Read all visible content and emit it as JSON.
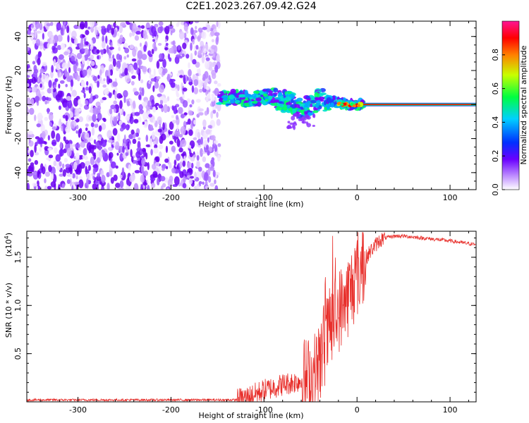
{
  "figure_title": "C2E1.2023.267.09.42.G24",
  "colors": {
    "snr_line": "#e8302c",
    "rainbow": [
      "#ffffff",
      "#7b00ff",
      "#0040ff",
      "#00c8ff",
      "#00ff60",
      "#c8ff00",
      "#ff8000",
      "#ff0000",
      "#ff1493"
    ]
  },
  "chart_data": [
    {
      "type": "heatmap",
      "xlabel": "Height of straight line (km)",
      "ylabel": "Frequency (Hz)",
      "xlim": [
        -355,
        128
      ],
      "ylim": [
        -50,
        49
      ],
      "xticks": [
        -300,
        -200,
        -100,
        0,
        100
      ],
      "xtick_labels": [
        "-300",
        "-200",
        "-100",
        "0",
        "100"
      ],
      "yticks": [
        -40,
        -20,
        0,
        20,
        40
      ],
      "ytick_labels": [
        "-40",
        "-20",
        "0",
        "20",
        "40"
      ],
      "colorbar": {
        "label": "Normalized spectral amplitude",
        "range": [
          0,
          1
        ],
        "ticks": [
          0.0,
          0.2,
          0.4,
          0.6,
          0.8
        ],
        "tick_labels": [
          "0.0",
          "0.2",
          "0.4",
          "0.6",
          "0.8"
        ]
      },
      "regions": [
        {
          "description": "broadband noise",
          "x": [
            -355,
            -148
          ],
          "y": [
            -50,
            49
          ]
        },
        {
          "description": "signal band",
          "x": [
            -148,
            128
          ],
          "y": [
            -15,
            10
          ]
        }
      ],
      "signal_trace": {
        "x": [
          -148,
          -130,
          -110,
          -100,
          -90,
          -80,
          -70,
          -60,
          -50,
          -40,
          -30,
          -20,
          -10,
          0,
          20,
          60,
          100,
          128
        ],
        "y": [
          4,
          4,
          3,
          5,
          4,
          2,
          1,
          -2,
          0,
          3,
          2,
          1,
          0,
          0,
          0,
          0,
          0,
          0
        ]
      },
      "grid": false
    },
    {
      "type": "line",
      "xlabel": "Height of straight line (km)",
      "ylabel": "SNR (10 * v/v)",
      "y_multiplier_label": "(x10",
      "y_multiplier_exp": "4",
      "y_multiplier_close": ")",
      "xlim": [
        -355,
        128
      ],
      "ylim": [
        0,
        1.77
      ],
      "xticks": [
        -300,
        -200,
        -100,
        0,
        100
      ],
      "xtick_labels": [
        "-300",
        "-200",
        "-100",
        "0",
        "100"
      ],
      "yticks": [
        0.5,
        1.0,
        1.5
      ],
      "ytick_labels": [
        "0.5",
        "1.0",
        "1.5"
      ],
      "series": [
        {
          "x": [
            -355,
            -300,
            -250,
            -200,
            -150,
            -130,
            -120,
            -110,
            -100,
            -90,
            -80,
            -70,
            -60,
            -50,
            -45,
            -40,
            -35,
            -30,
            -25,
            -20,
            -15,
            -10,
            -5,
            0,
            5,
            10,
            15,
            20,
            25,
            30,
            35,
            40,
            50,
            60,
            70,
            80,
            100,
            128
          ],
          "values": [
            0.02,
            0.02,
            0.02,
            0.02,
            0.02,
            0.02,
            0.04,
            0.08,
            0.12,
            0.15,
            0.18,
            0.2,
            0.22,
            0.25,
            0.3,
            0.42,
            0.6,
            0.72,
            0.85,
            0.95,
            1.0,
            1.1,
            1.2,
            1.3,
            1.4,
            1.5,
            1.57,
            1.63,
            1.68,
            1.7,
            1.71,
            1.72,
            1.72,
            1.71,
            1.7,
            1.69,
            1.67,
            1.63
          ]
        }
      ],
      "grid": false
    }
  ]
}
